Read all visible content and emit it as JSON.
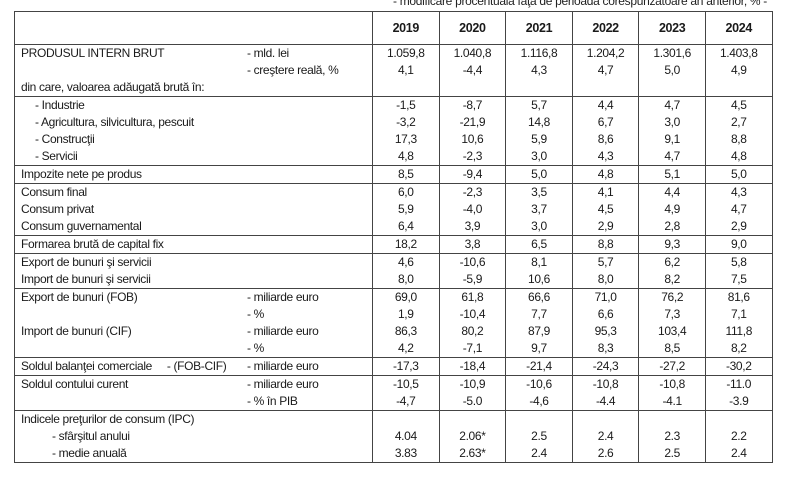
{
  "subtitle": "- modificare procentuală faţă de perioada corespunzătoare an anterior, % -",
  "years": [
    "2019",
    "2020",
    "2021",
    "2022",
    "2023",
    "2024"
  ],
  "groups": [
    {
      "rows": [
        {
          "label": "PRODUSUL INTERN BRUT",
          "unit": "- mld. lei",
          "values": [
            "1.059,8",
            "1.040,8",
            "1.116,8",
            "1.204,2",
            "1.301,6",
            "1.403,8"
          ]
        },
        {
          "label": "",
          "unit": "- creştere reală, %",
          "values": [
            "4,1",
            "-4,4",
            "4,3",
            "4,7",
            "5,0",
            "4,9"
          ]
        },
        {
          "label": "din care, valoarea adăugată brută în:",
          "unit": "",
          "values": [
            "",
            "",
            "",
            "",
            "",
            ""
          ]
        }
      ]
    },
    {
      "rows": [
        {
          "label": "- Industrie",
          "indent": 1,
          "unit": "",
          "values": [
            "-1,5",
            "-8,7",
            "5,7",
            "4,4",
            "4,7",
            "4,5"
          ]
        },
        {
          "label": "- Agricultura, silvicultura, pescuit",
          "indent": 1,
          "unit": "",
          "values": [
            "-3,2",
            "-21,9",
            "14,8",
            "6,7",
            "3,0",
            "2,7"
          ]
        },
        {
          "label": "- Construcţii",
          "indent": 1,
          "unit": "",
          "values": [
            "17,3",
            "10,6",
            "5,9",
            "8,6",
            "9,1",
            "8,8"
          ]
        },
        {
          "label": "- Servicii",
          "indent": 1,
          "unit": "",
          "values": [
            "4,8",
            "-2,3",
            "3,0",
            "4,3",
            "4,7",
            "4,8"
          ]
        }
      ]
    },
    {
      "rows": [
        {
          "label": "Impozite nete pe produs",
          "unit": "",
          "values": [
            "8,5",
            "-9,4",
            "5,0",
            "4,8",
            "5,1",
            "5,0"
          ]
        }
      ]
    },
    {
      "rows": [
        {
          "label": "Consum final",
          "unit": "",
          "values": [
            "6,0",
            "-2,3",
            "3,5",
            "4,1",
            "4,4",
            "4,3"
          ]
        },
        {
          "label": "Consum privat",
          "unit": "",
          "values": [
            "5,9",
            "-4,0",
            "3,7",
            "4,5",
            "4,9",
            "4,7"
          ]
        },
        {
          "label": "Consum guvernamental",
          "unit": "",
          "values": [
            "6,4",
            "3,9",
            "3,0",
            "2,9",
            "2,8",
            "2,9"
          ]
        }
      ]
    },
    {
      "rows": [
        {
          "label": "Formarea brută de capital fix",
          "unit": "",
          "values": [
            "18,2",
            "3,8",
            "6,5",
            "8,8",
            "9,3",
            "9,0"
          ]
        }
      ]
    },
    {
      "rows": [
        {
          "label": "Export de bunuri şi servicii",
          "unit": "",
          "values": [
            "4,6",
            "-10,6",
            "8,1",
            "5,7",
            "6,2",
            "5,8"
          ]
        },
        {
          "label": "Import de bunuri şi servicii",
          "unit": "",
          "values": [
            "8,0",
            "-5,9",
            "10,6",
            "8,0",
            "8,2",
            "7,5"
          ]
        }
      ]
    },
    {
      "rows": [
        {
          "label": "Export de bunuri (FOB)",
          "unit": "- miliarde euro",
          "values": [
            "69,0",
            "61,8",
            "66,6",
            "71,0",
            "76,2",
            "81,6"
          ]
        },
        {
          "label": "",
          "unit": "- %",
          "values": [
            "1,9",
            "-10,4",
            "7,7",
            "6,6",
            "7,3",
            "7,1"
          ]
        },
        {
          "label": "Import de bunuri (CIF)",
          "unit": "- miliarde euro",
          "values": [
            "86,3",
            "80,2",
            "87,9",
            "95,3",
            "103,4",
            "111,8"
          ]
        },
        {
          "label": "",
          "unit": "- %",
          "values": [
            "4,2",
            "-7,1",
            "9,7",
            "8,3",
            "8,5",
            "8,2"
          ]
        }
      ]
    },
    {
      "rows": [
        {
          "label": "Soldul balanţei comerciale     - (FOB-CIF)",
          "unit": "- miliarde euro",
          "values": [
            "-17,3",
            "-18,4",
            "-21,4",
            "-24,3",
            "-27,2",
            "-30,2"
          ]
        }
      ]
    },
    {
      "rows": [
        {
          "label": "Soldul contului curent",
          "unit": "- miliarde euro",
          "values": [
            "-10,5",
            "-10,9",
            "-10,6",
            "-10,8",
            "-10,8",
            "-11.0"
          ]
        },
        {
          "label": "",
          "unit": "-  % în PIB",
          "values": [
            "-4,7",
            "-5.0",
            "-4,6",
            "-4.4",
            "-4.1",
            "-3.9"
          ]
        }
      ]
    },
    {
      "rows": [
        {
          "label": "Indicele preţurilor de consum (IPC)",
          "unit": "",
          "values": [
            "",
            "",
            "",
            "",
            "",
            ""
          ]
        },
        {
          "label": "- sfârşitul anului",
          "indent": 2,
          "unit": "",
          "values": [
            "4.04",
            "2.06*",
            "2.5",
            "2.4",
            "2.3",
            "2.2"
          ]
        },
        {
          "label": "- medie anuală",
          "indent": 2,
          "unit": "",
          "values": [
            "3.83",
            "2.63*",
            "2.4",
            "2.6",
            "2.5",
            "2.4"
          ]
        }
      ]
    }
  ]
}
